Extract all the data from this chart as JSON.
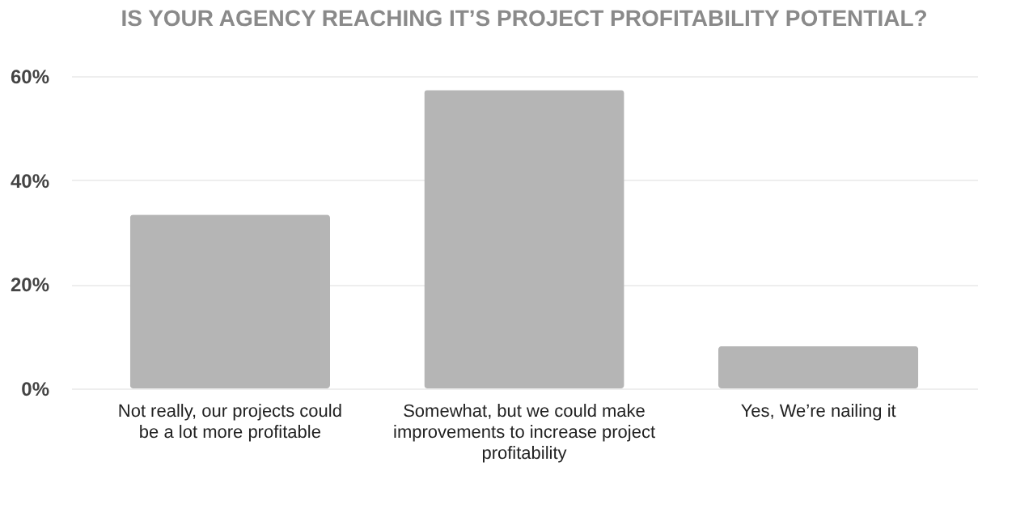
{
  "chart_data": {
    "type": "bar",
    "title": "IS YOUR AGENCY REACHING IT’S PROJECT PROFITABILITY POTENTIAL?",
    "categories": [
      "Not really, our projects could be a lot more profitable",
      "Somewhat, but we could make improvements to increase project profitability",
      "Yes, We’re nailing it"
    ],
    "values": [
      33.4,
      57.3,
      8.1
    ],
    "color": "#b5b5b5",
    "ylim": [
      0,
      60
    ],
    "yticks": [
      {
        "value": 0,
        "label": "0%"
      },
      {
        "value": 20,
        "label": "20%"
      },
      {
        "value": 40,
        "label": "40%"
      },
      {
        "value": 60,
        "label": "60%"
      }
    ],
    "grid": "y"
  }
}
